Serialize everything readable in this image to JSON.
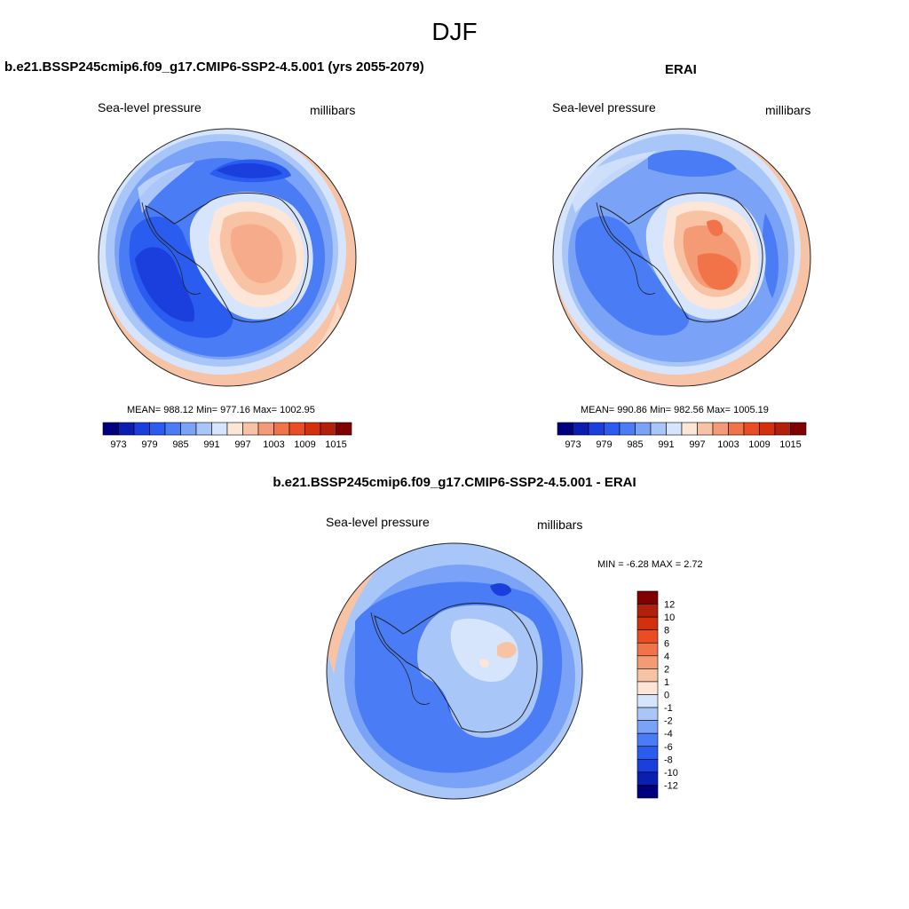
{
  "page": {
    "title": "DJF"
  },
  "panels": {
    "model": {
      "title": "b.e21.BSSP245cmip6.f09_g17.CMIP6-SSP2-4.5.001 (yrs 2055-2079)",
      "left_label": "Sea-level pressure",
      "right_label": "millibars",
      "stats": "MEAN= 988.12  Min= 977.16  Max= 1002.95"
    },
    "obs": {
      "title": "ERAI",
      "left_label": "Sea-level pressure",
      "right_label": "millibars",
      "stats": "MEAN= 990.86  Min= 982.56  Max= 1005.19"
    },
    "diff": {
      "title": "b.e21.BSSP245cmip6.f09_g17.CMIP6-SSP2-4.5.001 - ERAI",
      "left_label": "Sea-level pressure",
      "right_label": "millibars",
      "stats": "MIN =  -6.28 MAX =   2.72"
    }
  },
  "colorbars": {
    "abs_labels": [
      "973",
      "979",
      "985",
      "991",
      "997",
      "1003",
      "1009",
      "1015"
    ],
    "abs_colors": [
      "#00007f",
      "#0a1fb0",
      "#1a3fdd",
      "#2a5cf0",
      "#4a7cf5",
      "#7aa2f7",
      "#a9c6f9",
      "#d6e5fb",
      "#fde6d7",
      "#f8c2a4",
      "#f49a74",
      "#f07448",
      "#ea4d24",
      "#d3300e",
      "#b1200b",
      "#800000"
    ],
    "diff_labels": [
      "12",
      "10",
      "8",
      "6",
      "4",
      "2",
      "1",
      "0",
      "-1",
      "-2",
      "-4",
      "-6",
      "-8",
      "-10",
      "-12"
    ],
    "diff_colors": [
      "#800000",
      "#b1200b",
      "#d3300e",
      "#ea4d24",
      "#f07448",
      "#f49a74",
      "#f8c2a4",
      "#fde6d7",
      "#d6e5fb",
      "#a9c6f9",
      "#7aa2f7",
      "#4a7cf5",
      "#2a5cf0",
      "#1a3fdd",
      "#0a1fb0",
      "#00007f"
    ]
  },
  "chart_data": [
    {
      "type": "heatmap",
      "title": "b.e21.BSSP245cmip6.f09_g17.CMIP6-SSP2-4.5.001 (yrs 2055-2079)",
      "variable": "Sea-level pressure",
      "units": "millibars",
      "mean": 988.12,
      "min": 977.16,
      "max": 1002.95,
      "contour_levels": [
        973,
        976,
        979,
        982,
        985,
        988,
        991,
        994,
        997,
        1000,
        1003,
        1006,
        1009,
        1012,
        1015
      ],
      "projection": "south polar stereographic"
    },
    {
      "type": "heatmap",
      "title": "ERAI",
      "variable": "Sea-level pressure",
      "units": "millibars",
      "mean": 990.86,
      "min": 982.56,
      "max": 1005.19,
      "contour_levels": [
        973,
        976,
        979,
        982,
        985,
        988,
        991,
        994,
        997,
        1000,
        1003,
        1006,
        1009,
        1012,
        1015
      ],
      "projection": "south polar stereographic"
    },
    {
      "type": "heatmap",
      "title": "b.e21.BSSP245cmip6.f09_g17.CMIP6-SSP2-4.5.001 - ERAI",
      "variable": "Sea-level pressure",
      "units": "millibars",
      "min": -6.28,
      "max": 2.72,
      "contour_levels": [
        -12,
        -10,
        -8,
        -6,
        -4,
        -2,
        -1,
        0,
        1,
        2,
        4,
        6,
        8,
        10,
        12
      ],
      "projection": "south polar stereographic"
    }
  ]
}
